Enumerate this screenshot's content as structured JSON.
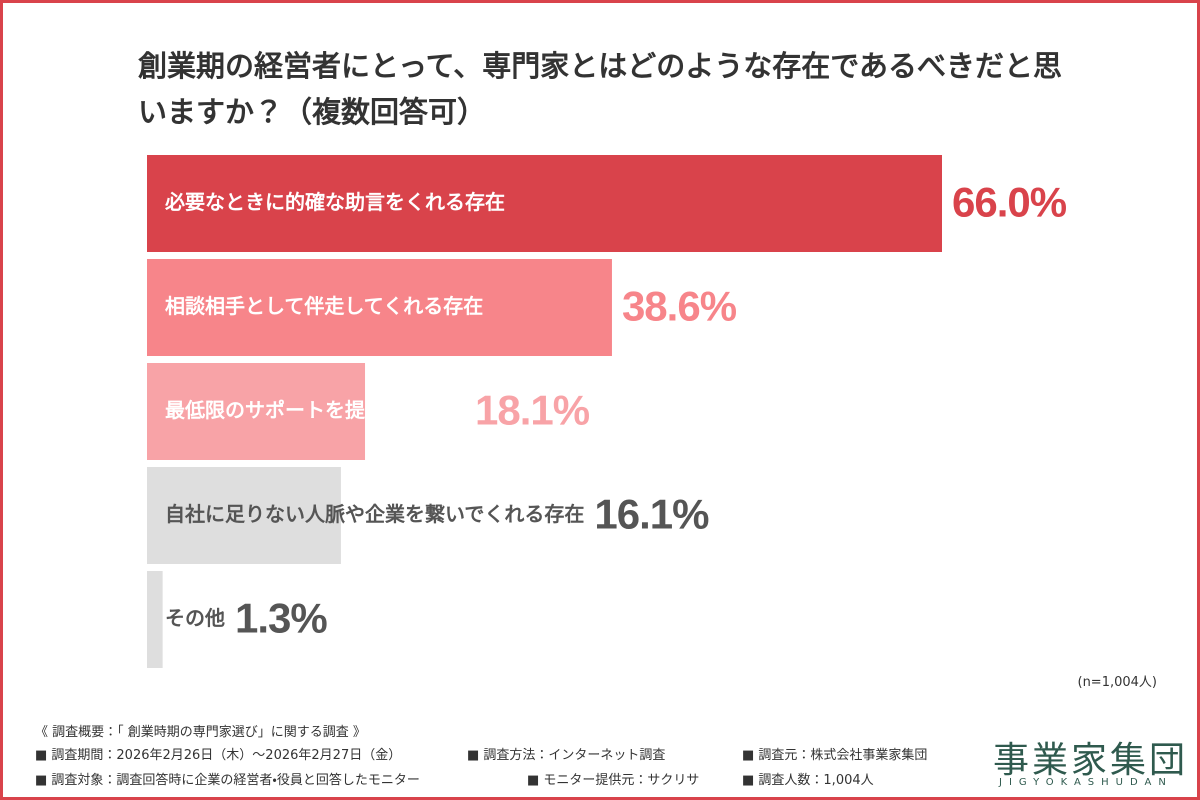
{
  "chart_data": {
    "type": "bar",
    "title": "創業期の経営者にとって、専門家とはどのような存在であるべきだと思いますか？（複数回答可）",
    "categories": [
      "必要なときに的確な助言をくれる存在",
      "相談相手として伴走してくれる存在",
      "最低限のサポートを提供する存在",
      "自社に足りない人脈や企業を繋いでくれる存在",
      "その他"
    ],
    "values": [
      66.0,
      38.6,
      18.1,
      16.1,
      1.3
    ],
    "value_labels": [
      "66.0%",
      "38.6%",
      "18.1%",
      "16.1%",
      "1.3%"
    ],
    "colors": [
      "#d9434b",
      "#f7858a",
      "#f8a3a7",
      "#dedede",
      "#dedede"
    ],
    "label_colors": [
      "#ffffff",
      "#ffffff",
      "#ffffff",
      "#555555",
      "#555555"
    ],
    "value_label_colors": [
      "#d9434b",
      "#f7858a",
      "#f8a3a7",
      "#555555",
      "#555555"
    ],
    "note": "(n=1,004人)"
  },
  "footer": {
    "heading": "《 調査概要：「 創業時期の専門家選び」に関する調査 》",
    "items": [
      "■ 調査期間：2026年2月26日（木）～2026年2月27日（金）",
      "■ 調査方法：インターネット調査",
      "■ 調査元：株式会社事業家集団",
      "■ 調査対象：調査回答時に企業の経営者・役員と回答したモニター",
      "■ モニター提供元：サクリサ",
      "■ 調査人数：1,004人"
    ]
  },
  "logo": {
    "name": "事業家集団",
    "romaji": "JIGYOKASHUDAN"
  }
}
